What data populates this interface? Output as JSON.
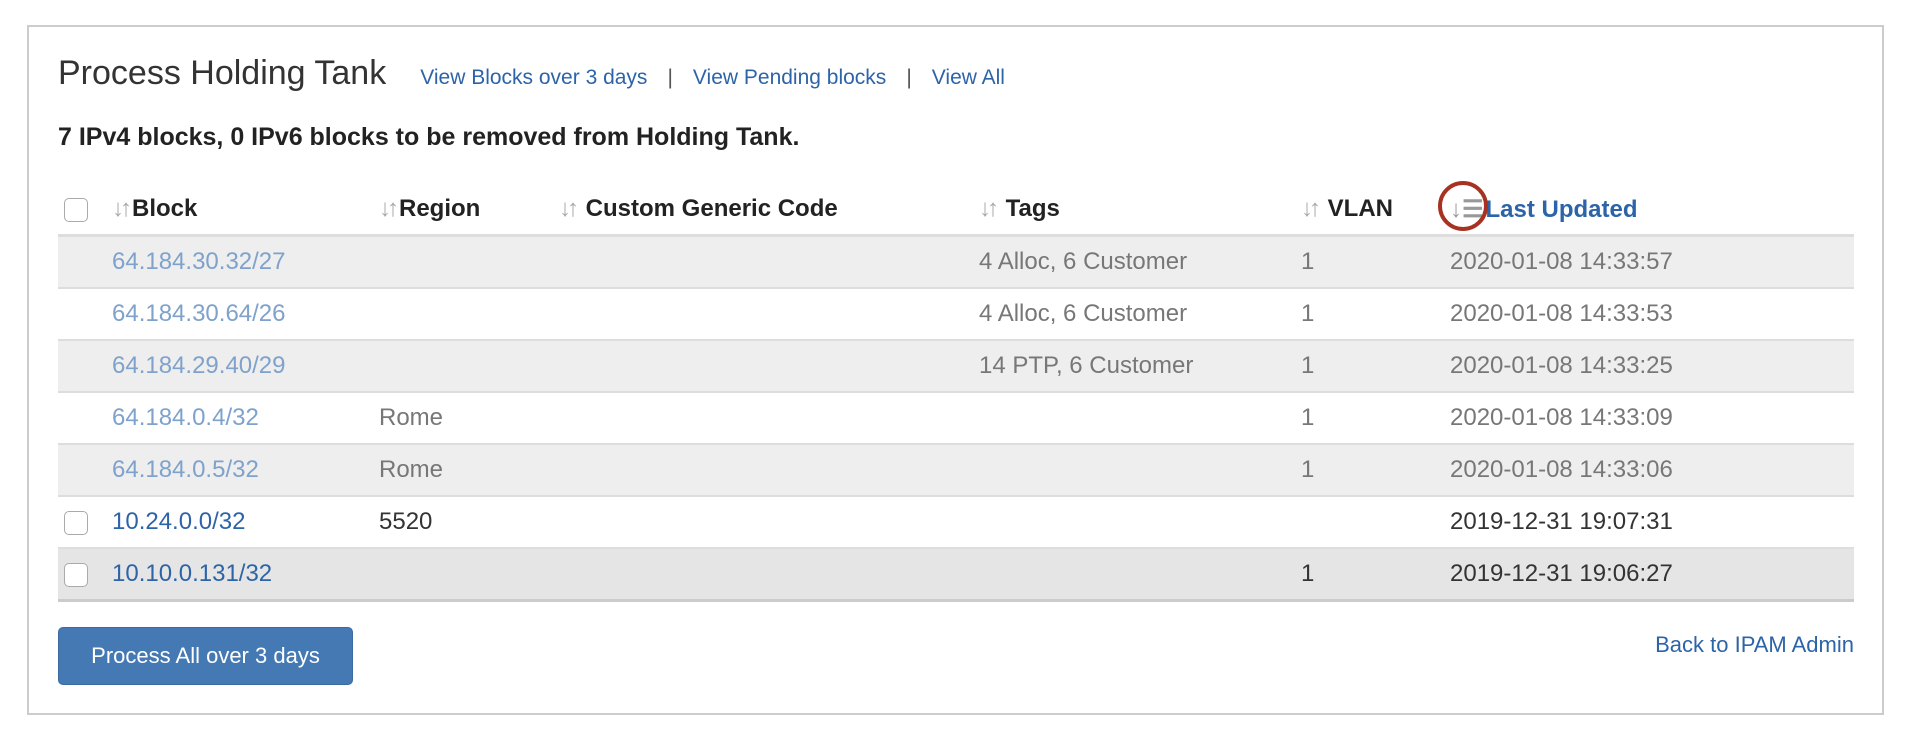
{
  "header": {
    "title": "Process Holding Tank",
    "links": [
      "View Blocks over 3 days",
      "View Pending blocks",
      "View All"
    ],
    "separator": "|"
  },
  "summary": "7 IPv4 blocks, 0 IPv6 blocks to be removed from Holding Tank.",
  "table": {
    "sort_icon": "sort-arrows-icon",
    "columns": [
      "Block",
      "Region",
      "Custom Generic Code",
      "Tags",
      "VLAN",
      "Last Updated"
    ],
    "sorted_column": "Last Updated",
    "rows": [
      {
        "block": "64.184.30.32/27",
        "region": "",
        "code": "",
        "tags": "4 Alloc, 6 Customer",
        "vlan": "1",
        "updated": "2020-01-08 14:33:57",
        "checkbox": false
      },
      {
        "block": "64.184.30.64/26",
        "region": "",
        "code": "",
        "tags": "4 Alloc, 6 Customer",
        "vlan": "1",
        "updated": "2020-01-08 14:33:53",
        "checkbox": false
      },
      {
        "block": "64.184.29.40/29",
        "region": "",
        "code": "",
        "tags": "14 PTP, 6 Customer",
        "vlan": "1",
        "updated": "2020-01-08 14:33:25",
        "checkbox": false
      },
      {
        "block": "64.184.0.4/32",
        "region": "Rome",
        "code": "",
        "tags": "",
        "vlan": "1",
        "updated": "2020-01-08 14:33:09",
        "checkbox": false
      },
      {
        "block": "64.184.0.5/32",
        "region": "Rome",
        "code": "",
        "tags": "",
        "vlan": "1",
        "updated": "2020-01-08 14:33:06",
        "checkbox": false
      },
      {
        "block": "10.24.0.0/32",
        "region": "5520",
        "code": "",
        "tags": "",
        "vlan": "",
        "updated": "2019-12-31 19:07:31",
        "checkbox": true
      },
      {
        "block": "10.10.0.131/32",
        "region": "",
        "code": "",
        "tags": "",
        "vlan": "1",
        "updated": "2019-12-31 19:06:27",
        "checkbox": true
      }
    ]
  },
  "footer": {
    "process_button": "Process All over 3 days",
    "back_link": "Back to IPAM Admin"
  },
  "colors": {
    "link": "#2d64a8",
    "button": "#4479b4",
    "highlight_ring": "#a83222"
  }
}
